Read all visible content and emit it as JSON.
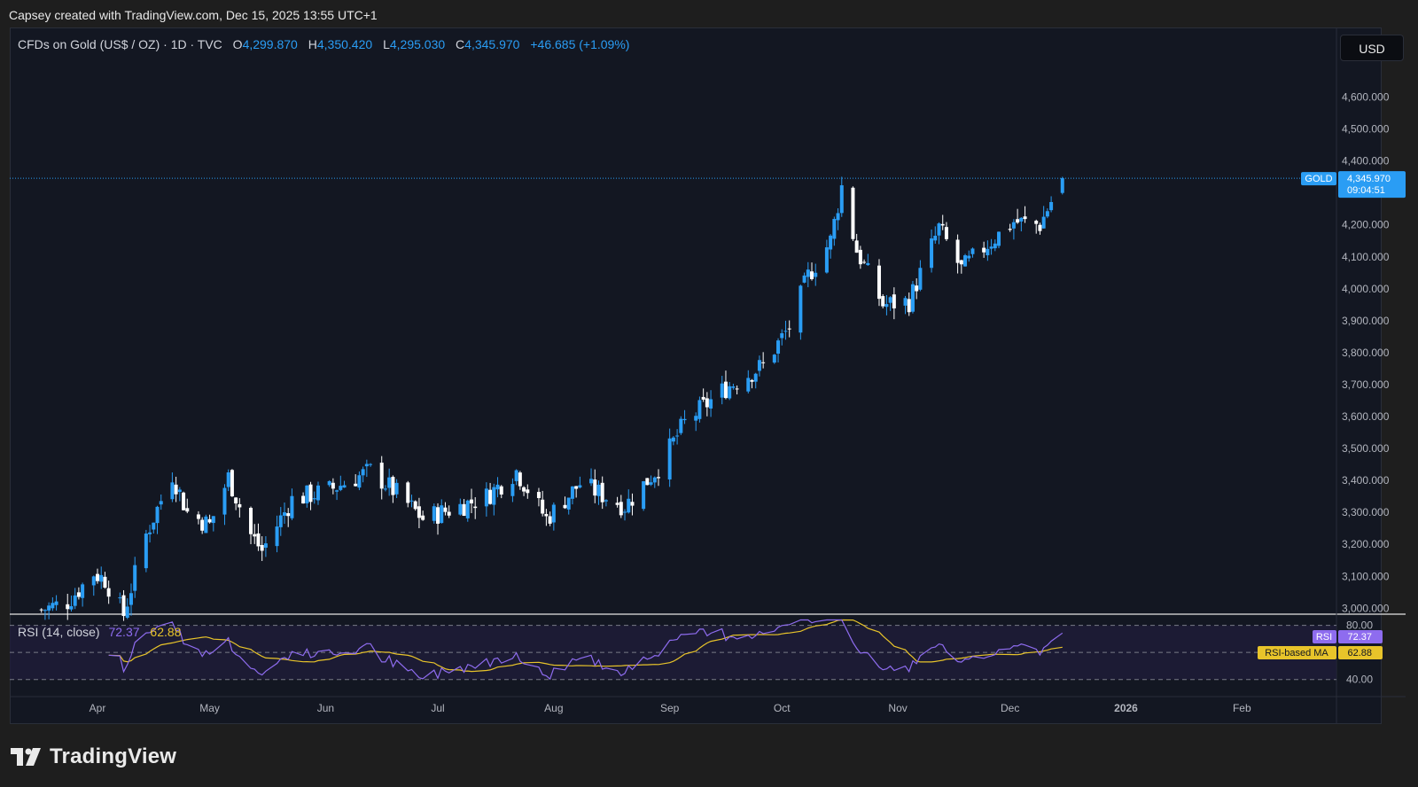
{
  "caption": "Capsey created with TradingView.com, Dec 15, 2025 13:55 UTC+1",
  "symbol": {
    "name": "CFDs on Gold (US$ / OZ) · 1D · TVC",
    "open_label": "O",
    "open": "4,299.870",
    "high_label": "H",
    "high": "4,350.420",
    "low_label": "L",
    "low": "4,295.030",
    "close_label": "C",
    "close": "4,345.970",
    "change": "+46.685 (+1.09%)"
  },
  "currency": "USD",
  "price_tag": {
    "symbol": "GOLD",
    "price": "4,345.970",
    "countdown": "09:04:51"
  },
  "rsi": {
    "legend": "RSI (14, close)",
    "rsi_value": "72.37",
    "ma_value": "62.88",
    "rsi_tag_label": "RSI",
    "ma_tag_label": "RSI-based MA",
    "levels": [
      "80.00",
      "40.00"
    ]
  },
  "logo": "TradingView",
  "colors": {
    "up": "#2a9df4",
    "down": "#ffffff",
    "rsi": "#8e6cef",
    "rsi_ma": "#e8c42a",
    "background": "#131722"
  },
  "chart_data": {
    "type": "candlestick",
    "title": "CFDs on Gold (US$ / OZ) · 1D · TVC",
    "ylim": [
      2950,
      4700
    ],
    "y_ticks": [
      3000,
      3100,
      3200,
      3300,
      3400,
      3500,
      3600,
      3700,
      3800,
      3900,
      4000,
      4100,
      4200,
      4300,
      4400,
      4500,
      4600
    ],
    "y_tick_labels": [
      "3,000.000",
      "3,100.000",
      "3,200.000",
      "3,300.000",
      "3,400.000",
      "3,500.000",
      "3,600.000",
      "3,700.000",
      "3,800.000",
      "3,900.000",
      "4,000.000",
      "4,100.000",
      "4,200.000",
      "",
      "4,400.000",
      "4,500.000",
      "4,600.000"
    ],
    "x_labels": [
      "Apr",
      "May",
      "Jun",
      "Jul",
      "Aug",
      "Sep",
      "Oct",
      "Nov",
      "Dec",
      "2026",
      "Feb"
    ],
    "x_label_dates": [
      "2025-04-01",
      "2025-05-01",
      "2025-06-01",
      "2025-07-01",
      "2025-08-01",
      "2025-09-01",
      "2025-10-01",
      "2025-11-01",
      "2025-12-01",
      "2026-01-01",
      "2026-02-01"
    ],
    "last_price": 4345.97,
    "closes": [
      {
        "date": "2025-03-17",
        "close": 2995
      },
      {
        "date": "2025-03-24",
        "close": 3020
      },
      {
        "date": "2025-03-31",
        "close": 3110
      },
      {
        "date": "2025-04-03",
        "close": 3090
      },
      {
        "date": "2025-04-08",
        "close": 2980
      },
      {
        "date": "2025-04-14",
        "close": 3230
      },
      {
        "date": "2025-04-21",
        "close": 3420
      },
      {
        "date": "2025-04-25",
        "close": 3300
      },
      {
        "date": "2025-05-01",
        "close": 3260
      },
      {
        "date": "2025-05-06",
        "close": 3410
      },
      {
        "date": "2025-05-12",
        "close": 3230
      },
      {
        "date": "2025-05-15",
        "close": 3180
      },
      {
        "date": "2025-05-23",
        "close": 3340
      },
      {
        "date": "2025-06-02",
        "close": 3370
      },
      {
        "date": "2025-06-13",
        "close": 3430
      },
      {
        "date": "2025-06-20",
        "close": 3360
      },
      {
        "date": "2025-06-27",
        "close": 3280
      },
      {
        "date": "2025-07-07",
        "close": 3320
      },
      {
        "date": "2025-07-14",
        "close": 3350
      },
      {
        "date": "2025-07-22",
        "close": 3430
      },
      {
        "date": "2025-07-30",
        "close": 3280
      },
      {
        "date": "2025-08-08",
        "close": 3390
      },
      {
        "date": "2025-08-20",
        "close": 3320
      },
      {
        "date": "2025-08-29",
        "close": 3440
      },
      {
        "date": "2025-09-05",
        "close": 3580
      },
      {
        "date": "2025-09-16",
        "close": 3690
      },
      {
        "date": "2025-09-26",
        "close": 3760
      },
      {
        "date": "2025-10-03",
        "close": 3880
      },
      {
        "date": "2025-10-08",
        "close": 4040
      },
      {
        "date": "2025-10-14",
        "close": 4150
      },
      {
        "date": "2025-10-17",
        "close": 4320
      },
      {
        "date": "2025-10-21",
        "close": 4120
      },
      {
        "date": "2025-10-28",
        "close": 3950
      },
      {
        "date": "2025-11-04",
        "close": 3960
      },
      {
        "date": "2025-11-12",
        "close": 4190
      },
      {
        "date": "2025-11-18",
        "close": 4060
      },
      {
        "date": "2025-11-25",
        "close": 4140
      },
      {
        "date": "2025-12-02",
        "close": 4210
      },
      {
        "date": "2025-12-09",
        "close": 4200
      },
      {
        "date": "2025-12-15",
        "close": 4345.97
      }
    ]
  }
}
